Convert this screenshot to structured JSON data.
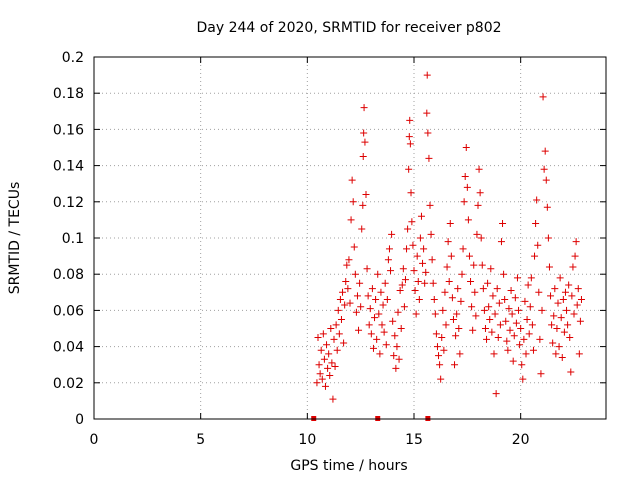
{
  "chart_data": {
    "type": "scatter",
    "title": "Day 244 of 2020, SRMTID for receiver p802",
    "xlabel": "GPS time / hours",
    "ylabel": "SRMTID / TECUs",
    "xlim": [
      0,
      24
    ],
    "ylim": [
      0,
      0.2
    ],
    "x_ticks": [
      0,
      5,
      10,
      15,
      20
    ],
    "x_tick_labels": [
      "0",
      "5",
      "10",
      "15",
      "20"
    ],
    "y_ticks": [
      0,
      0.02,
      0.04,
      0.06,
      0.08,
      0.1,
      0.12,
      0.14,
      0.16,
      0.18,
      0.2
    ],
    "y_tick_labels": [
      "0",
      "0.02",
      "0.04",
      "0.06",
      "0.08",
      "0.1",
      "0.12",
      "0.14",
      "0.16",
      "0.18",
      "0.2"
    ],
    "grid": true,
    "marker": "+",
    "series": [
      {
        "name": "SRMTID",
        "color": "#dd0000",
        "points": [
          [
            10.45,
            0.02
          ],
          [
            10.5,
            0.045
          ],
          [
            10.55,
            0.03
          ],
          [
            10.6,
            0.025
          ],
          [
            10.65,
            0.038
          ],
          [
            10.7,
            0.022
          ],
          [
            10.75,
            0.047
          ],
          [
            10.8,
            0.033
          ],
          [
            10.85,
            0.018
          ],
          [
            10.9,
            0.041
          ],
          [
            10.95,
            0.028
          ],
          [
            11.0,
            0.036
          ],
          [
            11.05,
            0.024
          ],
          [
            11.1,
            0.05
          ],
          [
            11.15,
            0.031
          ],
          [
            11.2,
            0.011
          ],
          [
            11.25,
            0.044
          ],
          [
            11.3,
            0.029
          ],
          [
            11.35,
            0.052
          ],
          [
            11.4,
            0.038
          ],
          [
            11.45,
            0.06
          ],
          [
            11.5,
            0.047
          ],
          [
            11.55,
            0.066
          ],
          [
            11.6,
            0.055
          ],
          [
            11.65,
            0.07
          ],
          [
            11.7,
            0.042
          ],
          [
            11.75,
            0.063
          ],
          [
            11.8,
            0.076
          ],
          [
            11.85,
            0.085
          ],
          [
            11.9,
            0.072
          ],
          [
            11.95,
            0.088
          ],
          [
            12.0,
            0.064
          ],
          [
            12.05,
            0.11
          ],
          [
            12.1,
            0.132
          ],
          [
            12.15,
            0.12
          ],
          [
            12.2,
            0.095
          ],
          [
            12.25,
            0.08
          ],
          [
            12.3,
            0.059
          ],
          [
            12.35,
            0.068
          ],
          [
            12.4,
            0.049
          ],
          [
            12.45,
            0.075
          ],
          [
            12.5,
            0.062
          ],
          [
            12.55,
            0.105
          ],
          [
            12.6,
            0.118
          ],
          [
            12.62,
            0.145
          ],
          [
            12.64,
            0.158
          ],
          [
            12.66,
            0.172
          ],
          [
            12.7,
            0.153
          ],
          [
            12.75,
            0.124
          ],
          [
            12.8,
            0.083
          ],
          [
            12.85,
            0.068
          ],
          [
            12.9,
            0.052
          ],
          [
            12.95,
            0.061
          ],
          [
            13.0,
            0.047
          ],
          [
            13.05,
            0.072
          ],
          [
            13.1,
            0.039
          ],
          [
            13.15,
            0.056
          ],
          [
            13.2,
            0.066
          ],
          [
            13.25,
            0.044
          ],
          [
            13.3,
            0.08
          ],
          [
            13.35,
            0.058
          ],
          [
            13.4,
            0.036
          ],
          [
            13.45,
            0.07
          ],
          [
            13.5,
            0.052
          ],
          [
            13.55,
            0.063
          ],
          [
            13.6,
            0.048
          ],
          [
            13.65,
            0.075
          ],
          [
            13.7,
            0.041
          ],
          [
            13.75,
            0.066
          ],
          [
            13.8,
            0.088
          ],
          [
            13.85,
            0.094
          ],
          [
            13.9,
            0.082
          ],
          [
            13.95,
            0.102
          ],
          [
            14.0,
            0.054
          ],
          [
            14.05,
            0.035
          ],
          [
            14.1,
            0.046
          ],
          [
            14.15,
            0.028
          ],
          [
            14.2,
            0.04
          ],
          [
            14.25,
            0.059
          ],
          [
            14.3,
            0.033
          ],
          [
            14.35,
            0.071
          ],
          [
            14.4,
            0.05
          ],
          [
            14.45,
            0.074
          ],
          [
            14.5,
            0.083
          ],
          [
            14.55,
            0.062
          ],
          [
            14.6,
            0.077
          ],
          [
            14.65,
            0.094
          ],
          [
            14.7,
            0.105
          ],
          [
            14.75,
            0.138
          ],
          [
            14.78,
            0.156
          ],
          [
            14.8,
            0.165
          ],
          [
            14.83,
            0.152
          ],
          [
            14.86,
            0.125
          ],
          [
            14.9,
            0.109
          ],
          [
            14.95,
            0.096
          ],
          [
            15.0,
            0.082
          ],
          [
            15.05,
            0.071
          ],
          [
            15.1,
            0.058
          ],
          [
            15.15,
            0.09
          ],
          [
            15.2,
            0.076
          ],
          [
            15.25,
            0.066
          ],
          [
            15.3,
            0.1
          ],
          [
            15.35,
            0.112
          ],
          [
            15.4,
            0.086
          ],
          [
            15.45,
            0.094
          ],
          [
            15.5,
            0.075
          ],
          [
            15.55,
            0.081
          ],
          [
            15.6,
            0.169
          ],
          [
            15.62,
            0.19
          ],
          [
            15.65,
            0.158
          ],
          [
            15.7,
            0.144
          ],
          [
            15.75,
            0.118
          ],
          [
            15.8,
            0.102
          ],
          [
            15.85,
            0.088
          ],
          [
            15.9,
            0.075
          ],
          [
            15.95,
            0.066
          ],
          [
            16.0,
            0.058
          ],
          [
            16.05,
            0.047
          ],
          [
            16.1,
            0.04
          ],
          [
            16.15,
            0.035
          ],
          [
            16.2,
            0.03
          ],
          [
            16.25,
            0.022
          ],
          [
            16.3,
            0.045
          ],
          [
            16.35,
            0.06
          ],
          [
            16.4,
            0.038
          ],
          [
            16.45,
            0.07
          ],
          [
            16.5,
            0.052
          ],
          [
            16.55,
            0.084
          ],
          [
            16.6,
            0.098
          ],
          [
            16.65,
            0.076
          ],
          [
            16.7,
            0.108
          ],
          [
            16.75,
            0.09
          ],
          [
            16.8,
            0.067
          ],
          [
            16.85,
            0.055
          ],
          [
            16.9,
            0.03
          ],
          [
            16.95,
            0.046
          ],
          [
            17.0,
            0.058
          ],
          [
            17.05,
            0.072
          ],
          [
            17.1,
            0.05
          ],
          [
            17.15,
            0.036
          ],
          [
            17.2,
            0.065
          ],
          [
            17.25,
            0.08
          ],
          [
            17.3,
            0.094
          ],
          [
            17.35,
            0.12
          ],
          [
            17.4,
            0.134
          ],
          [
            17.45,
            0.15
          ],
          [
            17.5,
            0.128
          ],
          [
            17.55,
            0.11
          ],
          [
            17.6,
            0.09
          ],
          [
            17.65,
            0.076
          ],
          [
            17.7,
            0.062
          ],
          [
            17.75,
            0.049
          ],
          [
            17.8,
            0.085
          ],
          [
            17.85,
            0.07
          ],
          [
            17.9,
            0.057
          ],
          [
            17.95,
            0.102
          ],
          [
            18.0,
            0.118
          ],
          [
            18.05,
            0.138
          ],
          [
            18.1,
            0.125
          ],
          [
            18.15,
            0.1
          ],
          [
            18.2,
            0.085
          ],
          [
            18.25,
            0.072
          ],
          [
            18.3,
            0.06
          ],
          [
            18.35,
            0.05
          ],
          [
            18.4,
            0.044
          ],
          [
            18.45,
            0.075
          ],
          [
            18.5,
            0.062
          ],
          [
            18.55,
            0.055
          ],
          [
            18.6,
            0.083
          ],
          [
            18.65,
            0.048
          ],
          [
            18.7,
            0.068
          ],
          [
            18.75,
            0.036
          ],
          [
            18.8,
            0.058
          ],
          [
            18.85,
            0.014
          ],
          [
            18.9,
            0.072
          ],
          [
            18.95,
            0.045
          ],
          [
            19.0,
            0.064
          ],
          [
            19.05,
            0.052
          ],
          [
            19.1,
            0.098
          ],
          [
            19.15,
            0.108
          ],
          [
            19.2,
            0.08
          ],
          [
            19.25,
            0.066
          ],
          [
            19.3,
            0.054
          ],
          [
            19.35,
            0.043
          ],
          [
            19.4,
            0.038
          ],
          [
            19.45,
            0.061
          ],
          [
            19.5,
            0.049
          ],
          [
            19.55,
            0.071
          ],
          [
            19.6,
            0.058
          ],
          [
            19.65,
            0.032
          ],
          [
            19.7,
            0.046
          ],
          [
            19.75,
            0.067
          ],
          [
            19.8,
            0.053
          ],
          [
            19.85,
            0.078
          ],
          [
            19.9,
            0.06
          ],
          [
            19.95,
            0.041
          ],
          [
            20.0,
            0.05
          ],
          [
            20.05,
            0.03
          ],
          [
            20.1,
            0.022
          ],
          [
            20.15,
            0.044
          ],
          [
            20.2,
            0.065
          ],
          [
            20.25,
            0.036
          ],
          [
            20.3,
            0.055
          ],
          [
            20.35,
            0.074
          ],
          [
            20.4,
            0.047
          ],
          [
            20.45,
            0.062
          ],
          [
            20.5,
            0.078
          ],
          [
            20.55,
            0.052
          ],
          [
            20.6,
            0.038
          ],
          [
            20.65,
            0.09
          ],
          [
            20.7,
            0.108
          ],
          [
            20.75,
            0.121
          ],
          [
            20.8,
            0.096
          ],
          [
            20.85,
            0.07
          ],
          [
            20.9,
            0.044
          ],
          [
            20.95,
            0.025
          ],
          [
            21.0,
            0.06
          ],
          [
            21.05,
            0.178
          ],
          [
            21.1,
            0.138
          ],
          [
            21.15,
            0.148
          ],
          [
            21.2,
            0.132
          ],
          [
            21.25,
            0.117
          ],
          [
            21.3,
            0.1
          ],
          [
            21.35,
            0.084
          ],
          [
            21.4,
            0.068
          ],
          [
            21.45,
            0.052
          ],
          [
            21.5,
            0.042
          ],
          [
            21.55,
            0.057
          ],
          [
            21.6,
            0.072
          ],
          [
            21.65,
            0.036
          ],
          [
            21.7,
            0.05
          ],
          [
            21.75,
            0.064
          ],
          [
            21.8,
            0.04
          ],
          [
            21.85,
            0.078
          ],
          [
            21.9,
            0.056
          ],
          [
            21.95,
            0.034
          ],
          [
            22.0,
            0.066
          ],
          [
            22.05,
            0.048
          ],
          [
            22.1,
            0.07
          ],
          [
            22.15,
            0.06
          ],
          [
            22.2,
            0.052
          ],
          [
            22.25,
            0.074
          ],
          [
            22.3,
            0.045
          ],
          [
            22.35,
            0.026
          ],
          [
            22.4,
            0.068
          ],
          [
            22.45,
            0.084
          ],
          [
            22.5,
            0.058
          ],
          [
            22.55,
            0.09
          ],
          [
            22.6,
            0.098
          ],
          [
            22.65,
            0.063
          ],
          [
            22.7,
            0.072
          ],
          [
            22.75,
            0.036
          ],
          [
            22.8,
            0.054
          ],
          [
            22.85,
            0.066
          ]
        ]
      }
    ],
    "zero_markers_x": [
      10.3,
      13.3,
      15.65
    ]
  }
}
